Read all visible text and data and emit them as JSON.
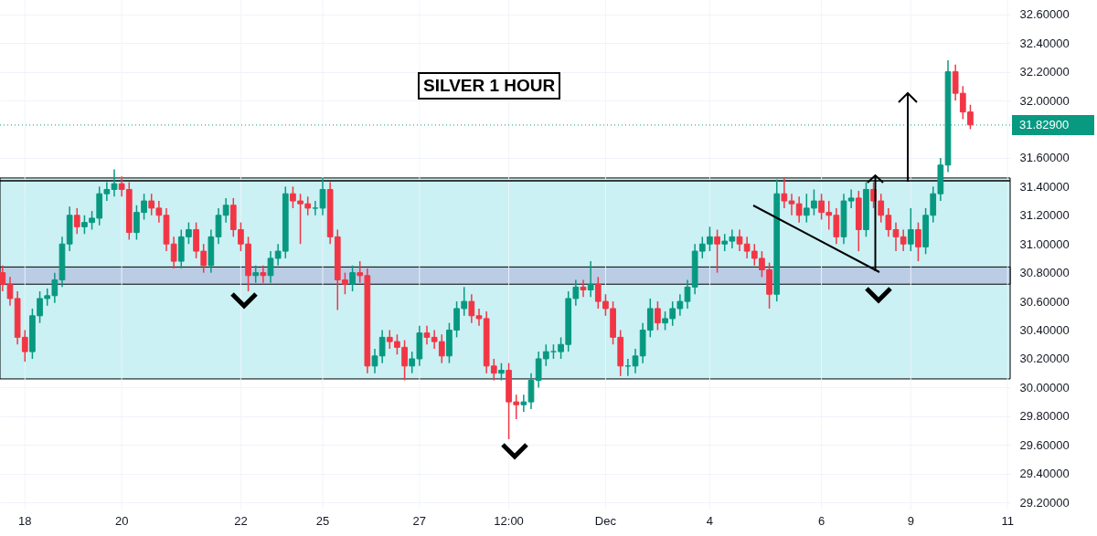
{
  "chart_data": {
    "type": "candlestick",
    "title": "SILVER 1 HOUR",
    "categories": [
      null,
      null,
      null,
      "18",
      null,
      null,
      null,
      null,
      null,
      null,
      null,
      null,
      null,
      null,
      null,
      null,
      "20",
      null,
      null,
      null,
      null,
      null,
      null,
      null,
      null,
      null,
      null,
      null,
      null,
      null,
      null,
      null,
      "22",
      null,
      null,
      null,
      null,
      null,
      null,
      null,
      null,
      null,
      null,
      "25",
      null,
      null,
      null,
      null,
      null,
      null,
      null,
      null,
      null,
      null,
      null,
      null,
      "27",
      null,
      null,
      null,
      null,
      null,
      null,
      null,
      null,
      null,
      null,
      null,
      "12:00",
      null,
      null,
      null,
      null,
      null,
      null,
      null,
      null,
      null,
      null,
      null,
      null,
      "Dec",
      null,
      null,
      null,
      null,
      null,
      null,
      null,
      null,
      null,
      null,
      null,
      null,
      null,
      "4",
      null,
      null,
      null,
      null,
      null,
      null,
      null,
      null,
      null,
      null,
      null,
      null,
      null,
      null,
      "6",
      null,
      null,
      null,
      null,
      null,
      null,
      null,
      null,
      null,
      null,
      null,
      "9",
      null,
      null,
      null,
      null,
      null,
      null,
      null,
      null,
      null,
      null,
      null,
      null,
      "11"
    ],
    "ohlc": [
      [
        30.8,
        30.85,
        30.67,
        30.72
      ],
      [
        30.72,
        30.77,
        30.57,
        30.62
      ],
      [
        30.62,
        30.67,
        30.3,
        30.35
      ],
      [
        30.35,
        30.4,
        30.18,
        30.25
      ],
      [
        30.25,
        30.55,
        30.2,
        30.5
      ],
      [
        30.5,
        30.67,
        30.45,
        30.62
      ],
      [
        30.62,
        30.69,
        30.57,
        30.64
      ],
      [
        30.64,
        30.8,
        30.59,
        30.75
      ],
      [
        30.75,
        31.05,
        30.7,
        31.0
      ],
      [
        31.0,
        31.26,
        30.95,
        31.2
      ],
      [
        31.2,
        31.25,
        31.07,
        31.12
      ],
      [
        31.12,
        31.2,
        31.07,
        31.15
      ],
      [
        31.15,
        31.23,
        31.1,
        31.18
      ],
      [
        31.18,
        31.4,
        31.13,
        31.35
      ],
      [
        31.35,
        31.43,
        31.3,
        31.38
      ],
      [
        31.38,
        31.52,
        31.33,
        31.42
      ],
      [
        31.42,
        31.47,
        31.33,
        31.38
      ],
      [
        31.38,
        31.43,
        31.03,
        31.08
      ],
      [
        31.08,
        31.27,
        31.03,
        31.22
      ],
      [
        31.22,
        31.35,
        31.17,
        31.3
      ],
      [
        31.3,
        31.35,
        31.2,
        31.25
      ],
      [
        31.25,
        31.3,
        31.15,
        31.2
      ],
      [
        31.2,
        31.25,
        30.95,
        31.0
      ],
      [
        31.0,
        31.05,
        30.83,
        30.88
      ],
      [
        30.88,
        31.1,
        30.83,
        31.05
      ],
      [
        31.05,
        31.15,
        31.0,
        31.1
      ],
      [
        31.1,
        31.15,
        30.9,
        30.95
      ],
      [
        30.95,
        31.0,
        30.8,
        30.85
      ],
      [
        30.85,
        31.1,
        30.8,
        31.05
      ],
      [
        31.05,
        31.25,
        31.0,
        31.2
      ],
      [
        31.2,
        31.32,
        31.15,
        31.27
      ],
      [
        31.27,
        31.32,
        31.05,
        31.1
      ],
      [
        31.1,
        31.15,
        30.95,
        31.0
      ],
      [
        31.0,
        31.05,
        30.67,
        30.78
      ],
      [
        30.78,
        30.85,
        30.73,
        30.8
      ],
      [
        30.8,
        30.85,
        30.73,
        30.78
      ],
      [
        30.78,
        30.95,
        30.73,
        30.9
      ],
      [
        30.9,
        31.0,
        30.85,
        30.95
      ],
      [
        30.95,
        31.4,
        30.9,
        31.35
      ],
      [
        31.35,
        31.4,
        31.25,
        31.3
      ],
      [
        31.3,
        31.35,
        31.0,
        31.28
      ],
      [
        31.28,
        31.33,
        31.2,
        31.25
      ],
      [
        31.25,
        31.3,
        31.2,
        31.25
      ],
      [
        31.25,
        31.46,
        31.2,
        31.38
      ],
      [
        31.38,
        31.43,
        31.0,
        31.05
      ],
      [
        31.05,
        31.1,
        30.54,
        30.75
      ],
      [
        30.75,
        30.8,
        30.65,
        30.72
      ],
      [
        30.72,
        30.85,
        30.67,
        30.8
      ],
      [
        30.8,
        30.88,
        30.73,
        30.78
      ],
      [
        30.78,
        30.83,
        30.1,
        30.15
      ],
      [
        30.15,
        30.27,
        30.1,
        30.22
      ],
      [
        30.22,
        30.4,
        30.17,
        30.35
      ],
      [
        30.35,
        30.4,
        30.27,
        30.32
      ],
      [
        30.32,
        30.37,
        30.23,
        30.28
      ],
      [
        30.28,
        30.33,
        30.05,
        30.15
      ],
      [
        30.15,
        30.25,
        30.1,
        30.2
      ],
      [
        30.2,
        30.43,
        30.15,
        30.38
      ],
      [
        30.38,
        30.43,
        30.3,
        30.35
      ],
      [
        30.35,
        30.4,
        30.27,
        30.32
      ],
      [
        30.32,
        30.37,
        30.17,
        30.22
      ],
      [
        30.22,
        30.45,
        30.17,
        30.4
      ],
      [
        30.4,
        30.6,
        30.35,
        30.55
      ],
      [
        30.55,
        30.7,
        30.5,
        30.6
      ],
      [
        30.6,
        30.65,
        30.45,
        30.5
      ],
      [
        30.5,
        30.55,
        30.43,
        30.48
      ],
      [
        30.48,
        30.53,
        30.1,
        30.15
      ],
      [
        30.15,
        30.2,
        30.05,
        30.1
      ],
      [
        30.1,
        30.17,
        30.05,
        30.12
      ],
      [
        30.12,
        30.17,
        29.64,
        29.9
      ],
      [
        29.9,
        29.95,
        29.78,
        29.88
      ],
      [
        29.88,
        29.95,
        29.83,
        29.9
      ],
      [
        29.9,
        30.1,
        29.85,
        30.05
      ],
      [
        30.05,
        30.25,
        30.0,
        30.2
      ],
      [
        30.2,
        30.3,
        30.15,
        30.25
      ],
      [
        30.25,
        30.3,
        30.2,
        30.25
      ],
      [
        30.25,
        30.35,
        30.2,
        30.3
      ],
      [
        30.3,
        30.67,
        30.25,
        30.62
      ],
      [
        30.62,
        30.75,
        30.57,
        30.7
      ],
      [
        30.7,
        30.75,
        30.63,
        30.68
      ],
      [
        30.68,
        30.88,
        30.63,
        30.72
      ],
      [
        30.72,
        30.77,
        30.55,
        30.6
      ],
      [
        30.6,
        30.65,
        30.5,
        30.55
      ],
      [
        30.55,
        30.6,
        30.3,
        30.35
      ],
      [
        30.35,
        30.4,
        30.08,
        30.15
      ],
      [
        30.15,
        30.2,
        30.08,
        30.15
      ],
      [
        30.15,
        30.27,
        30.1,
        30.22
      ],
      [
        30.22,
        30.45,
        30.17,
        30.4
      ],
      [
        30.4,
        30.62,
        30.35,
        30.55
      ],
      [
        30.55,
        30.6,
        30.4,
        30.45
      ],
      [
        30.45,
        30.53,
        30.4,
        30.48
      ],
      [
        30.48,
        30.6,
        30.43,
        30.55
      ],
      [
        30.55,
        30.65,
        30.5,
        30.6
      ],
      [
        30.6,
        30.75,
        30.55,
        30.7
      ],
      [
        30.7,
        31.0,
        30.65,
        30.95
      ],
      [
        30.95,
        31.05,
        30.9,
        31.0
      ],
      [
        31.0,
        31.12,
        30.95,
        31.05
      ],
      [
        31.05,
        31.1,
        30.8,
        31.0
      ],
      [
        31.0,
        31.07,
        30.95,
        31.02
      ],
      [
        31.02,
        31.1,
        30.97,
        31.05
      ],
      [
        31.05,
        31.1,
        30.95,
        31.0
      ],
      [
        31.0,
        31.05,
        30.9,
        30.95
      ],
      [
        30.95,
        31.0,
        30.85,
        30.9
      ],
      [
        30.9,
        30.95,
        30.77,
        30.82
      ],
      [
        30.82,
        30.87,
        30.55,
        30.65
      ],
      [
        30.65,
        31.45,
        30.6,
        31.35
      ],
      [
        31.35,
        31.46,
        31.25,
        31.3
      ],
      [
        31.3,
        31.35,
        31.2,
        31.28
      ],
      [
        31.28,
        31.33,
        31.15,
        31.2
      ],
      [
        31.2,
        31.35,
        31.15,
        31.25
      ],
      [
        31.25,
        31.38,
        31.2,
        31.3
      ],
      [
        31.3,
        31.35,
        31.17,
        31.22
      ],
      [
        31.22,
        31.3,
        31.1,
        31.2
      ],
      [
        31.2,
        31.25,
        31.0,
        31.05
      ],
      [
        31.05,
        31.35,
        31.0,
        31.3
      ],
      [
        31.3,
        31.38,
        31.25,
        31.32
      ],
      [
        31.32,
        31.37,
        30.95,
        31.1
      ],
      [
        31.1,
        31.43,
        31.05,
        31.38
      ],
      [
        31.38,
        31.43,
        31.25,
        31.3
      ],
      [
        31.3,
        31.35,
        31.15,
        31.2
      ],
      [
        31.2,
        31.25,
        31.05,
        31.1
      ],
      [
        31.1,
        31.15,
        30.95,
        31.05
      ],
      [
        31.05,
        31.1,
        30.95,
        31.0
      ],
      [
        31.0,
        31.25,
        30.95,
        31.1
      ],
      [
        31.1,
        31.15,
        30.88,
        30.98
      ],
      [
        30.98,
        31.25,
        30.93,
        31.2
      ],
      [
        31.2,
        31.4,
        31.15,
        31.35
      ],
      [
        31.35,
        31.6,
        31.3,
        31.55
      ],
      [
        31.55,
        32.28,
        31.5,
        32.2
      ],
      [
        32.2,
        32.25,
        32.0,
        32.05
      ],
      [
        32.05,
        32.1,
        31.87,
        31.92
      ],
      [
        31.92,
        31.97,
        31.8,
        31.83
      ],
      null,
      null,
      null,
      null,
      null
    ],
    "ylim": [
      29.15,
      32.7
    ],
    "yticks": [
      {
        "value": 29.2,
        "label": "29.20000"
      },
      {
        "value": 29.4,
        "label": "29.40000"
      },
      {
        "value": 29.6,
        "label": "29.60000"
      },
      {
        "value": 29.8,
        "label": "29.80000"
      },
      {
        "value": 30.0,
        "label": "30.00000"
      },
      {
        "value": 30.2,
        "label": "30.20000"
      },
      {
        "value": 30.4,
        "label": "30.40000"
      },
      {
        "value": 30.6,
        "label": "30.60000"
      },
      {
        "value": 30.8,
        "label": "30.80000"
      },
      {
        "value": 31.0,
        "label": "31.00000"
      },
      {
        "value": 31.2,
        "label": "31.20000"
      },
      {
        "value": 31.4,
        "label": "31.40000"
      },
      {
        "value": 31.6,
        "label": "31.60000"
      },
      {
        "value": 32.0,
        "label": "32.00000"
      },
      {
        "value": 32.2,
        "label": "32.20000"
      },
      {
        "value": 32.4,
        "label": "32.40000"
      },
      {
        "value": 32.6,
        "label": "32.60000"
      }
    ],
    "grid": true,
    "bands": [
      {
        "axis": "y",
        "from": 30.06,
        "to": 31.46,
        "color": "#c5eff3"
      },
      {
        "axis": "y",
        "from": 30.72,
        "to": 30.84,
        "color": "#b8c9e3"
      }
    ],
    "ref_lines": [
      {
        "axis": "y",
        "value": 31.44,
        "color": "#000000",
        "line_style": "solid"
      },
      {
        "axis": "y",
        "value": 31.829,
        "label": "31.82900",
        "color": "#089981",
        "line_style": "dotted"
      }
    ]
  }
}
